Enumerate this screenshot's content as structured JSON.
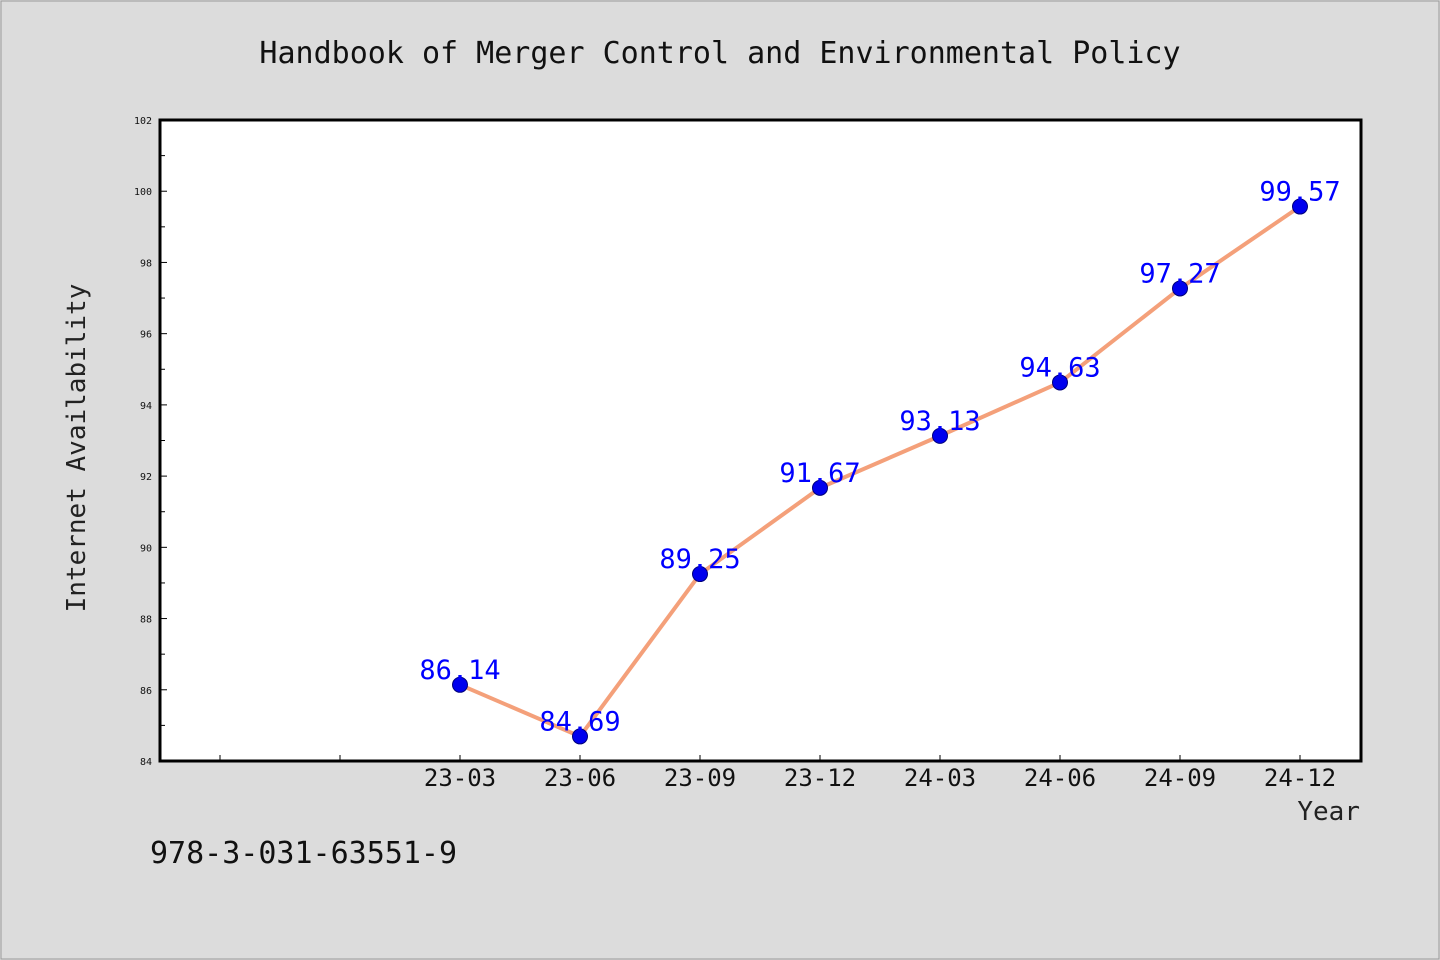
{
  "chart_data": {
    "type": "line",
    "title": "Handbook of Merger Control and Environmental Policy",
    "xlabel": "Year",
    "ylabel": "Internet Availability",
    "categories": [
      "23-03",
      "23-06",
      "23-09",
      "23-12",
      "24-03",
      "24-06",
      "24-09",
      "24-12"
    ],
    "series": [
      {
        "values": [
          86.14,
          84.69,
          89.25,
          91.67,
          93.13,
          94.63,
          97.27,
          99.57
        ]
      }
    ],
    "ylim": [
      84,
      102
    ],
    "yticks": [
      84,
      86,
      88,
      90,
      92,
      94,
      96,
      98,
      100,
      102
    ],
    "grid": false,
    "legend": "none",
    "line_color": "#f4a07a",
    "marker_color": "#0000ee",
    "label_color": "#0000ff"
  },
  "footer": {
    "isbn": "978-3-031-63551-9"
  }
}
